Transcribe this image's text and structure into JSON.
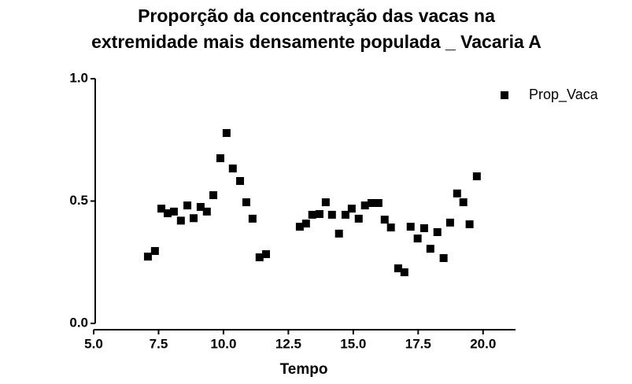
{
  "chart_data": {
    "type": "scatter",
    "title": [
      "Proporção da concentração das vacas na",
      "extremidade mais densamente populada _ Vacaria A"
    ],
    "xlabel": "Tempo",
    "xlim": [
      5,
      21.25
    ],
    "xticks": [
      {
        "value": 5,
        "label": "5.0"
      },
      {
        "value": 7.5,
        "label": "7.5"
      },
      {
        "value": 10,
        "label": "10.0"
      },
      {
        "value": 12.5,
        "label": "12.5"
      },
      {
        "value": 15,
        "label": "15.0"
      },
      {
        "value": 17.5,
        "label": "17.5"
      },
      {
        "value": 20,
        "label": "20.0"
      }
    ],
    "ylim": [
      0,
      1
    ],
    "yticks": [
      {
        "value": 0,
        "label": "0.0"
      },
      {
        "value": 0.5,
        "label": "0.5"
      },
      {
        "value": 1,
        "label": "1.0"
      }
    ],
    "legend": "top-right",
    "series": [
      {
        "name": "Prop_Vaca",
        "color": "#000000",
        "x": [
          7.09,
          7.36,
          7.61,
          7.85,
          8.09,
          8.36,
          8.61,
          8.85,
          9.12,
          9.36,
          9.61,
          9.88,
          10.12,
          10.36,
          10.64,
          10.88,
          11.12,
          11.39,
          11.64,
          12.94,
          13.18,
          13.42,
          13.7,
          13.94,
          14.18,
          14.45,
          14.7,
          14.94,
          15.21,
          15.45,
          15.7,
          15.97,
          16.21,
          16.45,
          16.73,
          16.97,
          17.21,
          17.48,
          17.73,
          17.97,
          18.24,
          18.48,
          18.73,
          19.0,
          19.24,
          19.48,
          19.76
        ],
        "values": [
          0.273,
          0.296,
          0.469,
          0.45,
          0.457,
          0.42,
          0.482,
          0.43,
          0.476,
          0.457,
          0.524,
          0.675,
          0.778,
          0.633,
          0.582,
          0.495,
          0.428,
          0.27,
          0.283,
          0.395,
          0.408,
          0.444,
          0.447,
          0.495,
          0.444,
          0.367,
          0.444,
          0.469,
          0.428,
          0.482,
          0.492,
          0.492,
          0.424,
          0.392,
          0.225,
          0.209,
          0.395,
          0.347,
          0.389,
          0.305,
          0.373,
          0.267,
          0.412,
          0.531,
          0.495,
          0.405,
          0.601
        ]
      }
    ]
  }
}
